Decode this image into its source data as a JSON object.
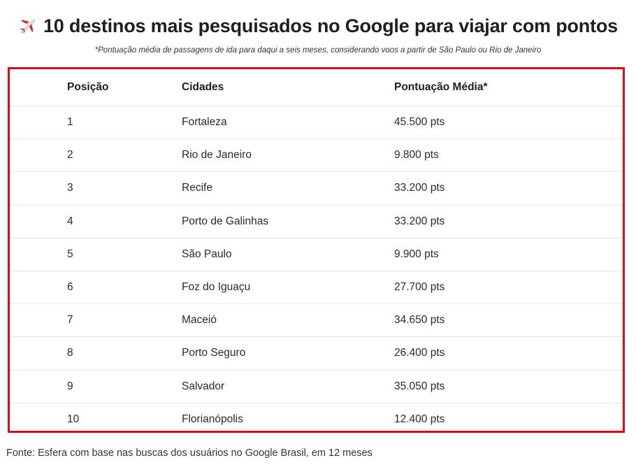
{
  "header": {
    "title_icon": "airplane-icon",
    "title": "10 destinos mais pesquisados no Google para viajar com pontos",
    "subtitle": "*Pontuação média de passagens de ida para daqui a seis meses, considerando voos a partir de São Paulo ou Rio de Janeiro"
  },
  "table": {
    "columns": [
      "Posição",
      "Cidades",
      "Pontuação Média*"
    ],
    "rows": [
      [
        "1",
        "Fortaleza",
        "45.500 pts"
      ],
      [
        "2",
        "Rio de Janeiro",
        "9.800 pts"
      ],
      [
        "3",
        "Recife",
        "33.200 pts"
      ],
      [
        "4",
        "Porto de Galinhas",
        "33.200 pts"
      ],
      [
        "5",
        "São Paulo",
        "9.900 pts"
      ],
      [
        "6",
        "Foz do Iguaçu",
        "27.700 pts"
      ],
      [
        "7",
        "Maceió",
        "34.650 pts"
      ],
      [
        "8",
        "Porto Seguro",
        "26.400 pts"
      ],
      [
        "9",
        "Salvador",
        "35.050 pts"
      ],
      [
        "10",
        "Florianópolis",
        "12.400 pts"
      ]
    ]
  },
  "footer": {
    "source": "Fonte: Esfera com base nas buscas dos usuários no Google Brasil, em 12 meses"
  },
  "colors": {
    "border_accent": "#e30613",
    "plane_body": "#e0dede",
    "plane_wing": "#d8262c"
  }
}
